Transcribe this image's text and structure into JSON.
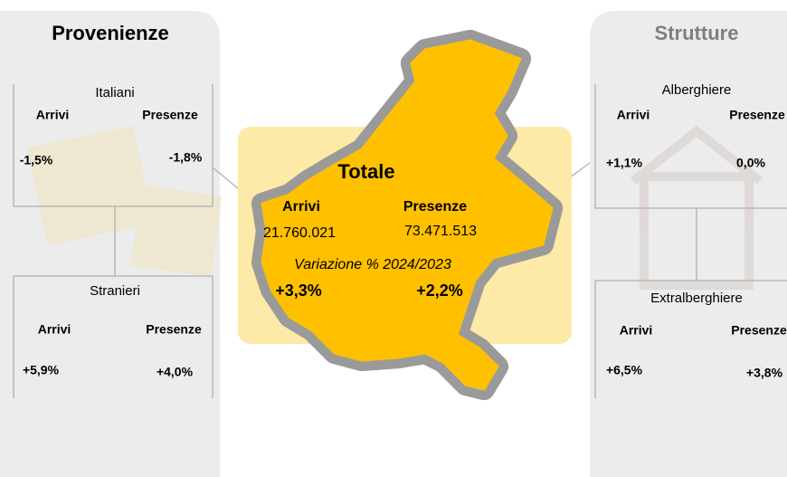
{
  "left": {
    "title": "Provenienze",
    "groups": [
      {
        "label": "Italiani",
        "arrivi_label": "Arrivi",
        "presenze_label": "Presenze",
        "arrivi": "-1,5%",
        "presenze": "-1,8%"
      },
      {
        "label": "Stranieri",
        "arrivi_label": "Arrivi",
        "presenze_label": "Presenze",
        "arrivi": "+5,9%",
        "presenze": "+4,0%"
      }
    ]
  },
  "right": {
    "title": "Strutture",
    "groups": [
      {
        "label": "Alberghiere",
        "arrivi_label": "Arrivi",
        "presenze_label": "Presenze",
        "arrivi": "+1,1%",
        "presenze": "0,0%"
      },
      {
        "label": "Extralberghiere",
        "arrivi_label": "Arrivi",
        "presenze_label": "Presenze",
        "arrivi": "+6,5%",
        "presenze": "+3,8%"
      }
    ]
  },
  "center": {
    "title": "Totale",
    "arrivi_label": "Arrivi",
    "presenze_label": "Presenze",
    "arrivi": "21.760.021",
    "presenze": "73.471.513",
    "variation_label": "Variazione % 2024/2023",
    "arrivi_var": "+3,3%",
    "presenze_var": "+2,2%"
  }
}
